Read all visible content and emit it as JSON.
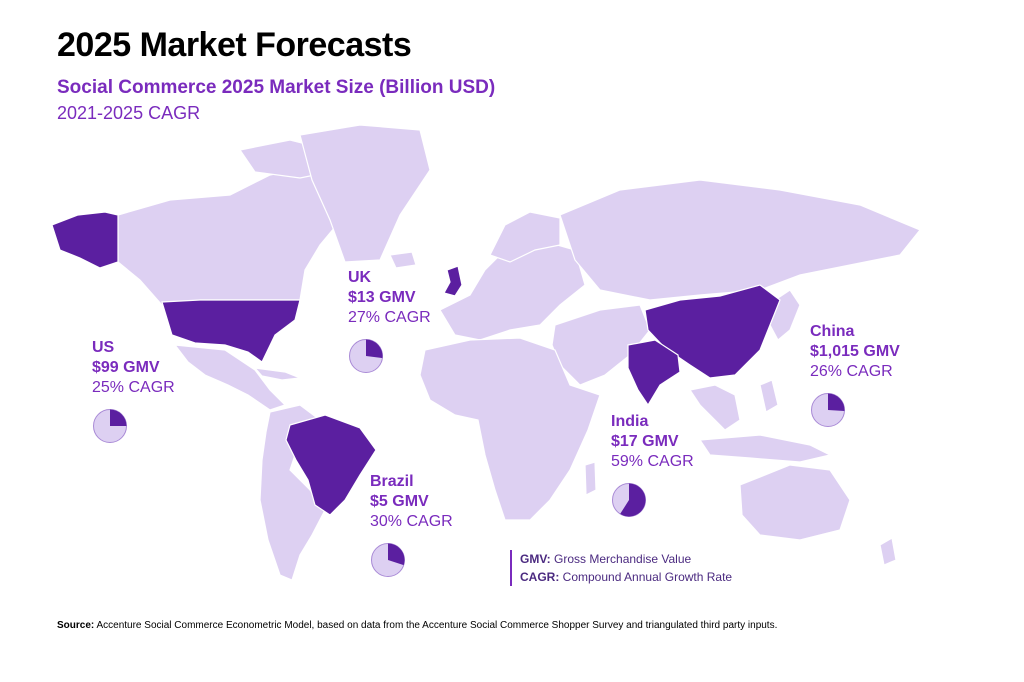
{
  "header": {
    "title": "2025 Market Forecasts",
    "subtitle": "Social Commerce 2025 Market Size (Billion USD)",
    "subtitle2": "2021-2025 CAGR"
  },
  "colors": {
    "highlight": "#5b1fa0",
    "land": "#ddd0f2",
    "border": "#ffffff",
    "text_accent": "#7a2bbd"
  },
  "markets": [
    {
      "id": "us",
      "name": "US",
      "gmv": "$99 GMV",
      "cagr": "25% CAGR",
      "cagr_value": 25
    },
    {
      "id": "uk",
      "name": "UK",
      "gmv": "$13 GMV",
      "cagr": "27% CAGR",
      "cagr_value": 27
    },
    {
      "id": "brazil",
      "name": "Brazil",
      "gmv": "$5 GMV",
      "cagr": "30% CAGR",
      "cagr_value": 30
    },
    {
      "id": "india",
      "name": "India",
      "gmv": "$17 GMV",
      "cagr": "59% CAGR",
      "cagr_value": 59
    },
    {
      "id": "china",
      "name": "China",
      "gmv": "$1,015 GMV",
      "cagr": "26% CAGR",
      "cagr_value": 26
    }
  ],
  "legend": {
    "gmv_abbr": "GMV:",
    "gmv_text": "Gross Merchandise Value",
    "cagr_abbr": "CAGR:",
    "cagr_text": "Compound Annual Growth Rate"
  },
  "source": {
    "label": "Source:",
    "text": "Accenture Social Commerce Econometric Model, based on data from the Accenture Social Commerce Shopper Survey and triangulated third party inputs."
  }
}
